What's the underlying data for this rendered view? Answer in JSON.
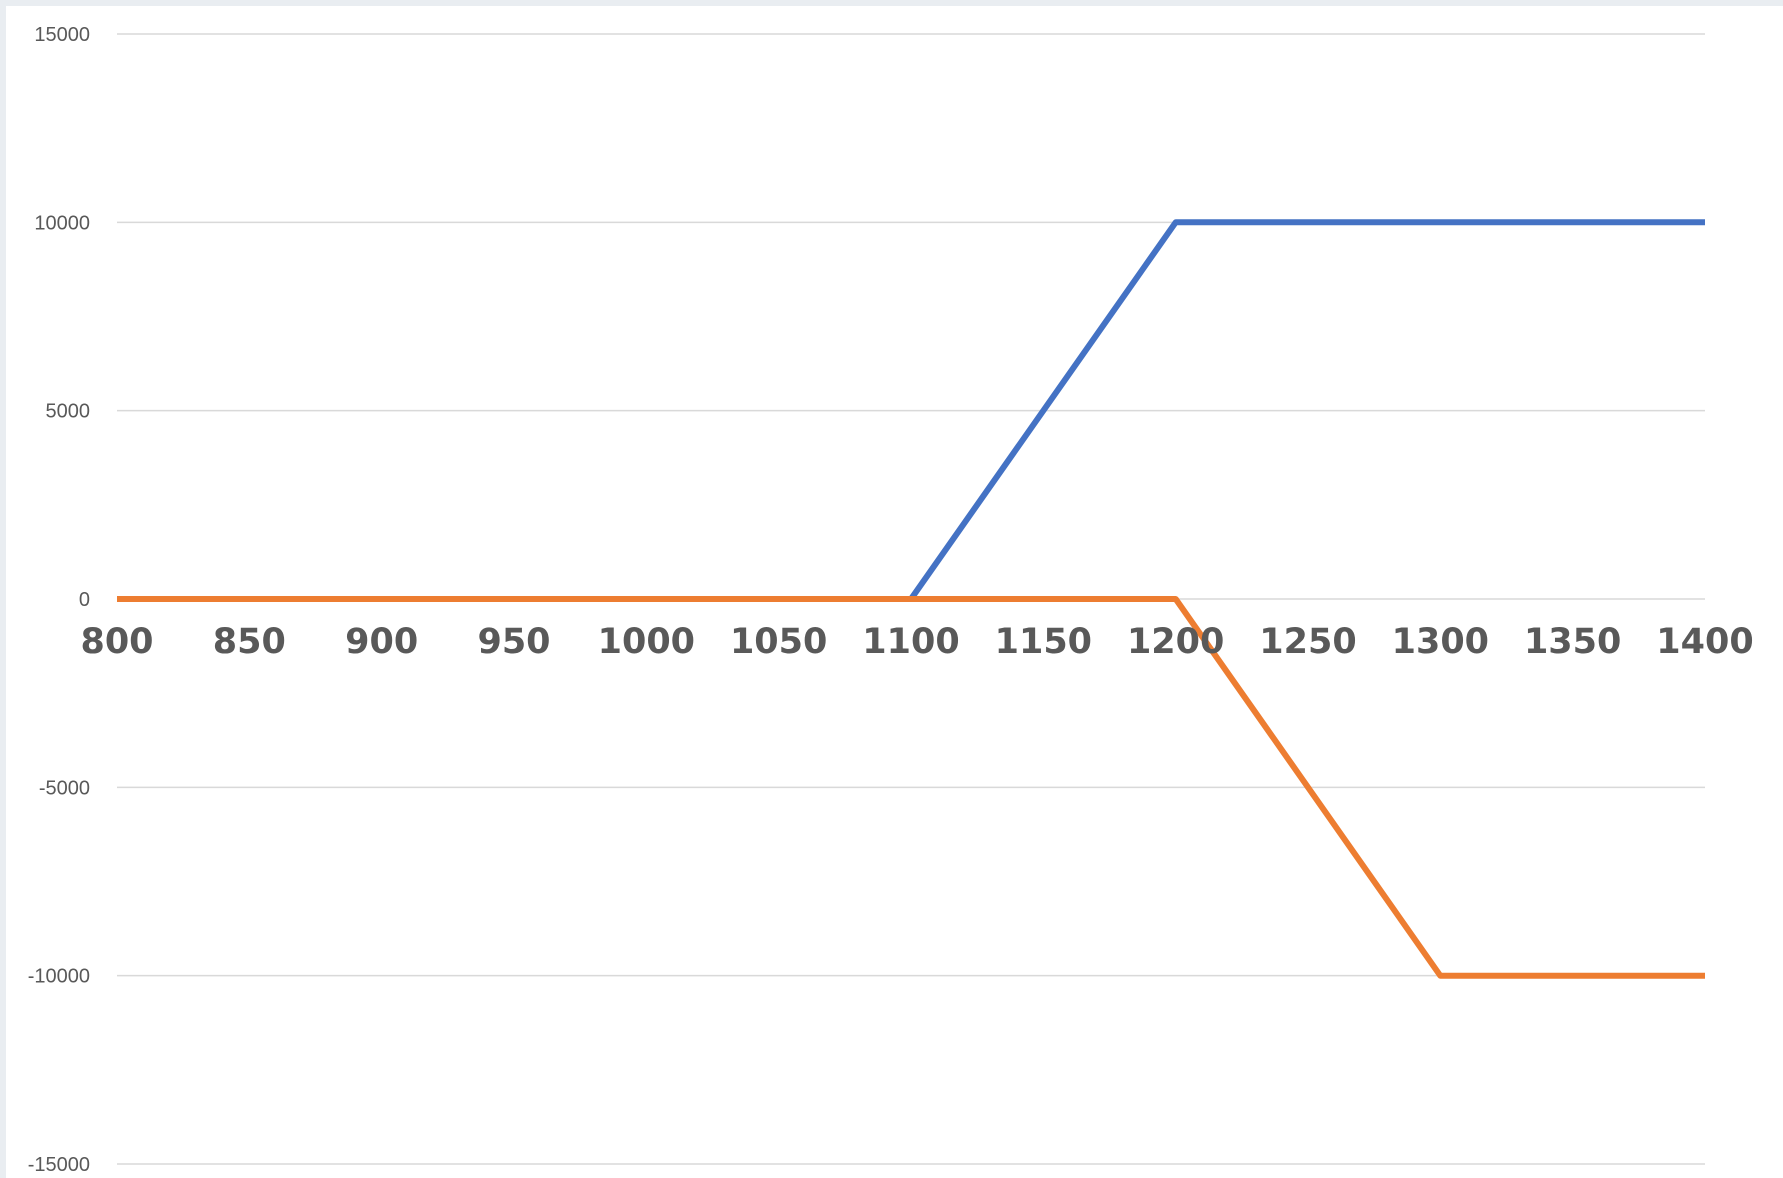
{
  "chart_data": {
    "type": "line",
    "title": "",
    "xlabel": "",
    "ylabel": "",
    "xlim": [
      800,
      1400
    ],
    "ylim": [
      -15000,
      15000
    ],
    "x_ticks": [
      800,
      850,
      900,
      950,
      1000,
      1050,
      1100,
      1150,
      1200,
      1250,
      1300,
      1350,
      1400
    ],
    "y_ticks": [
      15000,
      10000,
      5000,
      0,
      -5000,
      -10000,
      -15000
    ],
    "grid": "horizontal",
    "legend": "none",
    "series": [
      {
        "color": "#4472c4",
        "x": [
          800,
          850,
          900,
          950,
          1000,
          1050,
          1100,
          1150,
          1200,
          1250,
          1300,
          1350,
          1400
        ],
        "values": [
          0,
          0,
          0,
          0,
          0,
          0,
          0,
          5000,
          10000,
          10000,
          10000,
          10000,
          10000
        ]
      },
      {
        "color": "#ed7d31",
        "x": [
          800,
          850,
          900,
          950,
          1000,
          1050,
          1100,
          1150,
          1200,
          1250,
          1300,
          1350,
          1400
        ],
        "values": [
          0,
          0,
          0,
          0,
          0,
          0,
          0,
          0,
          0,
          -5000,
          -10000,
          -10000,
          -10000
        ]
      }
    ],
    "colors": {
      "gridline": "#d9d9d9",
      "tick_text": "#595959"
    }
  }
}
